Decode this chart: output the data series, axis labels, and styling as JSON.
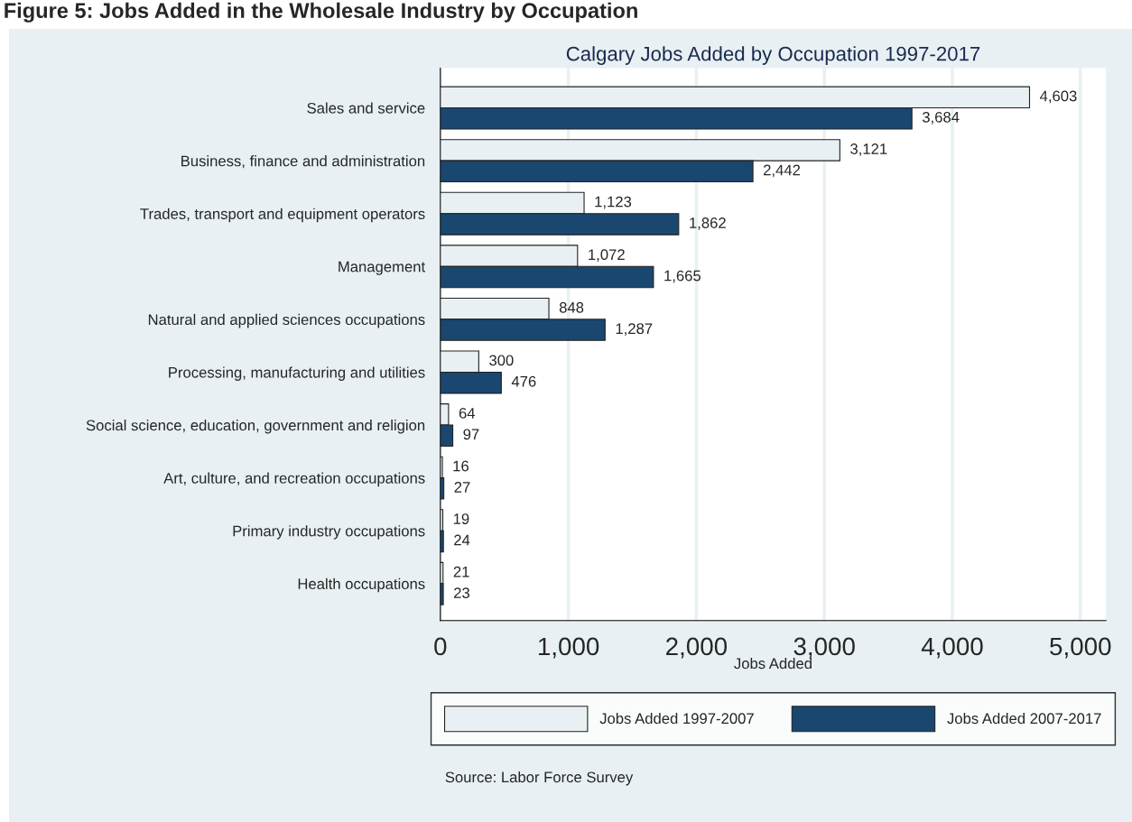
{
  "chart_data": {
    "type": "bar",
    "orientation": "horizontal",
    "title": "Figure 5: Jobs Added in the Wholesale Industry by Occupation",
    "subtitle": "Calgary Jobs Added by Occupation 1997-2017",
    "xlabel": "Jobs Added",
    "categories": [
      "Sales and service",
      "Business, finance and administration",
      "Trades, transport and equipment operators",
      "Management",
      "Natural and applied sciences occupations",
      "Processing, manufacturing and utilities",
      "Social science, education, government and religion",
      "Art, culture, and recreation occupations",
      "Primary industry occupations",
      "Health occupations"
    ],
    "series": [
      {
        "name": "Jobs Added 1997-2007",
        "color": "#e8f0f3",
        "values": [
          4603,
          3121,
          1123,
          1072,
          848,
          300,
          64,
          16,
          19,
          21
        ],
        "value_labels": [
          "4,603",
          "3,121",
          "1,123",
          "1,072",
          "848",
          "300",
          "64",
          "16",
          "19",
          "21"
        ]
      },
      {
        "name": "Jobs Added 2007-2017",
        "color": "#1a476f",
        "values": [
          3684,
          2442,
          1862,
          1665,
          1287,
          476,
          97,
          27,
          24,
          23
        ],
        "value_labels": [
          "3,684",
          "2,442",
          "1,862",
          "1,665",
          "1,287",
          "476",
          "97",
          "27",
          "24",
          "23"
        ]
      }
    ],
    "xlim": [
      0,
      5200
    ],
    "xticks": [
      0,
      {
        "value": 1000,
        "label": "1,000"
      },
      {
        "value": 2000,
        "label": "2,000"
      },
      {
        "value": 3000,
        "label": "3,000"
      },
      {
        "value": 4000,
        "label": "4,000"
      },
      {
        "value": 5000,
        "label": "5,000"
      }
    ],
    "grid": "x",
    "legend": "bottom",
    "annotations": [
      "Source: Labor Force Survey"
    ]
  }
}
